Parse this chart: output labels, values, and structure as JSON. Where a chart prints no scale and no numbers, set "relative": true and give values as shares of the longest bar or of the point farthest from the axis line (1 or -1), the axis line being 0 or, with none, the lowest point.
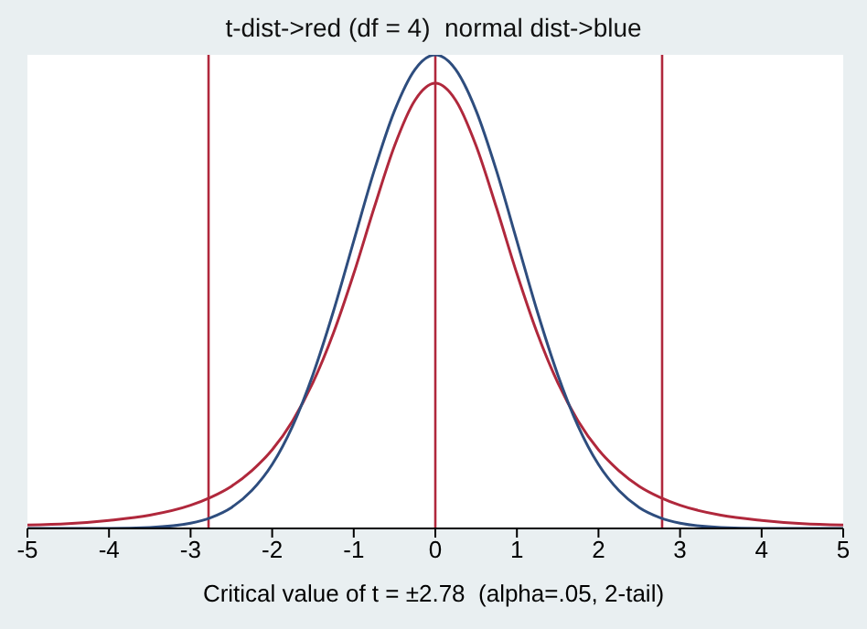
{
  "chart_data": {
    "type": "line",
    "title": "t-dist->red (df = 4)  normal dist->blue",
    "xlabel": "Critical value of t = ±2.78  (alpha=.05, 2-tail)",
    "relative": true,
    "marker": "none",
    "line_style": "solid",
    "x": [
      -5,
      -4.5,
      -4,
      -3.5,
      -3,
      -2.75,
      -2.5,
      -2.25,
      -2,
      -1.75,
      -1.5,
      -1.25,
      -1,
      -0.75,
      -0.5,
      -0.25,
      0,
      0.25,
      0.5,
      0.75,
      1,
      1.25,
      1.5,
      1.75,
      2,
      2.25,
      2.5,
      2.75,
      3,
      3.5,
      4,
      4.5,
      5
    ],
    "series": [
      {
        "color": "#b0283c",
        "values": [
          0.007,
          0.01,
          0.017,
          0.028,
          0.049,
          0.066,
          0.089,
          0.122,
          0.166,
          0.227,
          0.308,
          0.412,
          0.538,
          0.677,
          0.808,
          0.904,
          0.94,
          0.904,
          0.808,
          0.677,
          0.538,
          0.412,
          0.308,
          0.227,
          0.166,
          0.122,
          0.089,
          0.066,
          0.049,
          0.028,
          0.017,
          0.01,
          0.007
        ]
      },
      {
        "color": "#2e4d7e",
        "values": [
          0,
          0,
          0,
          0.002,
          0.011,
          0.023,
          0.044,
          0.08,
          0.135,
          0.216,
          0.325,
          0.458,
          0.607,
          0.755,
          0.882,
          0.969,
          1,
          0.969,
          0.882,
          0.755,
          0.607,
          0.458,
          0.325,
          0.216,
          0.135,
          0.08,
          0.044,
          0.023,
          0.011,
          0.002,
          0,
          0,
          0
        ]
      }
    ],
    "xlim": [
      -5,
      5
    ],
    "xticks": [
      -5,
      -4,
      -3,
      -2,
      -1,
      0,
      1,
      2,
      3,
      4,
      5
    ],
    "ref_lines": [
      {
        "axis": "x",
        "value": -2.78,
        "color": "#b0283c"
      },
      {
        "axis": "x",
        "value": 0,
        "color": "#b0283c"
      },
      {
        "axis": "x",
        "value": 2.78,
        "color": "#b0283c"
      }
    ]
  }
}
